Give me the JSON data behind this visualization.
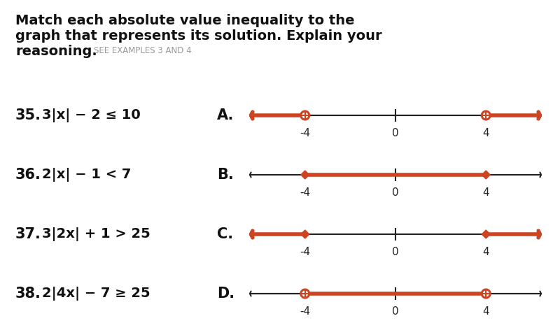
{
  "background_color": "#ffffff",
  "title_line1": "Match each absolute value inequality to the",
  "title_line2": "graph that represents its solution. Explain your",
  "title_line3": "reasoning.",
  "see_examples": "SEE EXAMPLES 3 AND 4",
  "problems": [
    {
      "num": "35.",
      "expr": "3|x| − 2 ≤ 10"
    },
    {
      "num": "36.",
      "expr": "2|x| − 1 < 7"
    },
    {
      "num": "37.",
      "expr": "3|2x| + 1 > 25"
    },
    {
      "num": "38.",
      "expr": "2|4x| − 7 ≥ 25"
    }
  ],
  "graphs": [
    {
      "label": "A.",
      "type": "outer",
      "endpoints": [
        -4,
        4
      ],
      "open": true,
      "black_left_arrow": true,
      "black_right_arrow": true,
      "red_left_arrow": true,
      "red_right_arrow": true
    },
    {
      "label": "B.",
      "type": "inner",
      "endpoints": [
        -4,
        4
      ],
      "open": false,
      "black_left_arrow": true,
      "black_right_arrow": true,
      "red_left_arrow": false,
      "red_right_arrow": false
    },
    {
      "label": "C.",
      "type": "outer",
      "endpoints": [
        -4,
        4
      ],
      "open": false,
      "black_left_arrow": true,
      "black_right_arrow": true,
      "red_left_arrow": true,
      "red_right_arrow": true
    },
    {
      "label": "D.",
      "type": "inner",
      "endpoints": [
        -4,
        4
      ],
      "open": true,
      "black_left_arrow": true,
      "black_right_arrow": true,
      "red_left_arrow": false,
      "red_right_arrow": false
    }
  ],
  "red_color": "#cc4422",
  "black_color": "#222222",
  "gray_color": "#aaaaaa",
  "xmin": -6.5,
  "xmax": 6.5
}
